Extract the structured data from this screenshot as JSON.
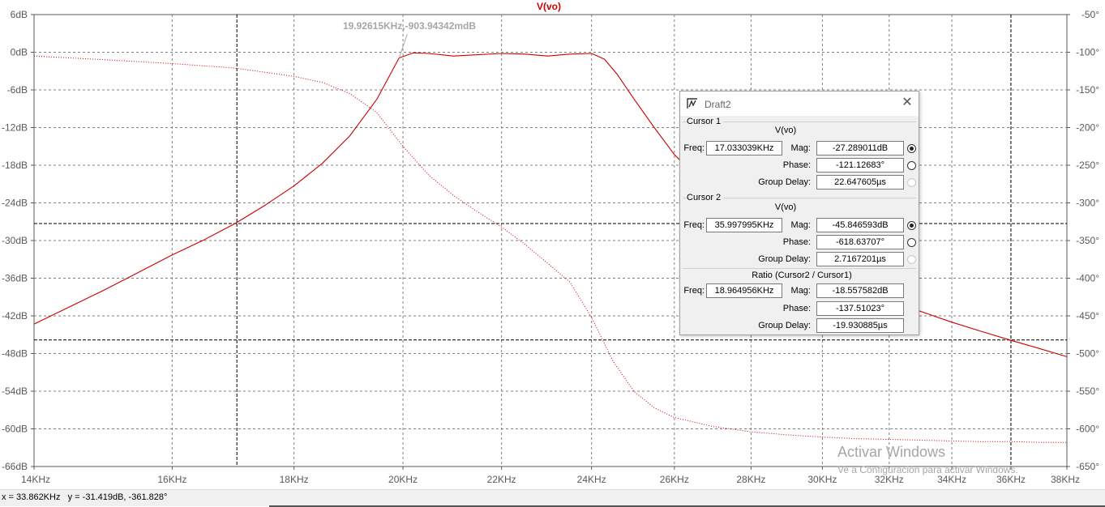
{
  "chart_data": {
    "type": "line",
    "title": "V(vo)",
    "x_tick_labels": [
      "14KHz",
      "16KHz",
      "18KHz",
      "20KHz",
      "22KHz",
      "24KHz",
      "26KHz",
      "28KHz",
      "30KHz",
      "32KHz",
      "34KHz",
      "36KHz",
      "38KHz"
    ],
    "x_ticks_hz": [
      14000,
      16000,
      18000,
      20000,
      22000,
      24000,
      26000,
      28000,
      30000,
      32000,
      34000,
      36000,
      38000
    ],
    "xlim_hz": [
      14000,
      38000
    ],
    "x_scale": "log",
    "left_tick_labels": [
      "6dB",
      "0dB",
      "-6dB",
      "-12dB",
      "-18dB",
      "-24dB",
      "-30dB",
      "-36dB",
      "-42dB",
      "-48dB",
      "-54dB",
      "-60dB",
      "-66dB"
    ],
    "left_ticks": [
      6,
      0,
      -6,
      -12,
      -18,
      -24,
      -30,
      -36,
      -42,
      -48,
      -54,
      -60,
      -66
    ],
    "ylim_left_db": [
      -66,
      6
    ],
    "right_tick_labels": [
      "-50°",
      "-100°",
      "-150°",
      "-200°",
      "-250°",
      "-300°",
      "-350°",
      "-400°",
      "-450°",
      "-500°",
      "-550°",
      "-600°",
      "-650°"
    ],
    "right_ticks": [
      -50,
      -100,
      -150,
      -200,
      -250,
      -300,
      -350,
      -400,
      -450,
      -500,
      -550,
      -600,
      -650
    ],
    "ylim_right_deg": [
      -650,
      -50
    ],
    "grid": true,
    "magnitude_series": {
      "x": [
        14000,
        14500,
        15000,
        15500,
        16000,
        16500,
        17000,
        17500,
        18000,
        18500,
        19000,
        19500,
        19926,
        20200,
        20500,
        21000,
        21500,
        22000,
        22500,
        23000,
        23500,
        24000,
        24300,
        24600,
        25000,
        25500,
        26000,
        27000,
        28000,
        29000,
        30000,
        31000,
        32000,
        33000,
        34000,
        35000,
        36000,
        37000,
        38000
      ],
      "y": [
        -43.3,
        -40.5,
        -37.8,
        -35.0,
        -32.3,
        -29.9,
        -27.3,
        -24.4,
        -21.3,
        -17.7,
        -13.3,
        -7.5,
        -0.9,
        -0.1,
        -0.2,
        -0.6,
        -0.4,
        -0.2,
        -0.3,
        -0.6,
        -0.3,
        -0.2,
        -1.1,
        -3.5,
        -7.4,
        -12.0,
        -16.3,
        -22.5,
        -27.5,
        -31.5,
        -34.8,
        -37.5,
        -39.6,
        -41.3,
        -43.0,
        -44.5,
        -45.9,
        -47.2,
        -48.5
      ]
    },
    "phase_series": {
      "x": [
        14000,
        15000,
        16000,
        17000,
        18000,
        18500,
        19000,
        19500,
        20000,
        20500,
        21000,
        21500,
        22000,
        22500,
        23000,
        23500,
        24000,
        24500,
        25000,
        25500,
        26000,
        27000,
        28000,
        29000,
        30000,
        31000,
        32000,
        33000,
        34000,
        35000,
        36000,
        37000,
        38000
      ],
      "y": [
        -105,
        -110,
        -115,
        -121,
        -132,
        -140,
        -155,
        -180,
        -225,
        -263,
        -290,
        -312,
        -332,
        -355,
        -380,
        -405,
        -452,
        -510,
        -550,
        -572,
        -585,
        -597,
        -604,
        -608,
        -611,
        -613,
        -614,
        -615,
        -616,
        -617,
        -617,
        -618,
        -618
      ]
    },
    "annotation": "19.92615KHz,-903.94342mdB",
    "annotation_point": {
      "x_hz": 19926.15,
      "y_db": -0.9
    },
    "cursor1": {
      "x_hz": 17033.039,
      "y_db": -27.289011
    },
    "cursor2": {
      "x_hz": 35997.995,
      "y_db": -45.846593
    }
  },
  "watermark": {
    "title": "Activar Windows",
    "subtitle": "Ve a Configuración para activar Windows."
  },
  "status_bar": {
    "text": "x = 33.862KHz   y = -31.419dB, -361.828°"
  },
  "cursor_window": {
    "title": "Draft2",
    "close_icon": "close-icon",
    "cursor1": {
      "label": "Cursor 1",
      "trace": "V(vo)",
      "freq_label": "Freq:",
      "freq": "17.033039KHz",
      "mag_label": "Mag:",
      "mag": "-27.289011dB",
      "phase_label": "Phase:",
      "phase": "-121.12683°",
      "gd_label": "Group Delay:",
      "gd": "22.647605µs"
    },
    "cursor2": {
      "label": "Cursor 2",
      "trace": "V(vo)",
      "freq_label": "Freq:",
      "freq": "35.997995KHz",
      "mag_label": "Mag:",
      "mag": "-45.846593dB",
      "phase_label": "Phase:",
      "phase": "-618.63707°",
      "gd_label": "Group Delay:",
      "gd": "2.7167201µs"
    },
    "ratio": {
      "label": "Ratio (Cursor2 / Cursor1)",
      "freq_label": "Freq:",
      "freq": "18.964956KHz",
      "mag_label": "Mag:",
      "mag": "-18.557582dB",
      "phase_label": "Phase:",
      "phase": "-137.51023°",
      "gd_label": "Group Delay:",
      "gd": "-19.930885µs"
    }
  },
  "colors": {
    "trace": "#cc0000",
    "grid": "#7f7f7f",
    "cursor": "#000000"
  }
}
